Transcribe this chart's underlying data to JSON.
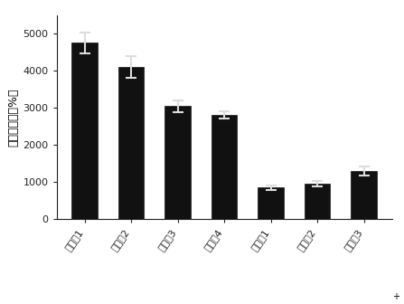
{
  "categories": [
    "实施例1",
    "实施例2",
    "实施例3",
    "实施例4",
    "对比例1",
    "对比例2",
    "对比例3"
  ],
  "values": [
    4750,
    4100,
    3050,
    2800,
    850,
    950,
    1300
  ],
  "errors": [
    270,
    300,
    160,
    100,
    60,
    80,
    120
  ],
  "bar_color": "#111111",
  "error_color": "#111111",
  "ylabel": "最大吸水率（%）",
  "ylim": [
    0,
    5500
  ],
  "yticks": [
    0,
    1000,
    2000,
    3000,
    4000,
    5000
  ],
  "background_color": "#ffffff",
  "bar_width": 0.55,
  "ylabel_fontsize": 9,
  "tick_fontsize": 8,
  "xlabel_rotation": 55
}
